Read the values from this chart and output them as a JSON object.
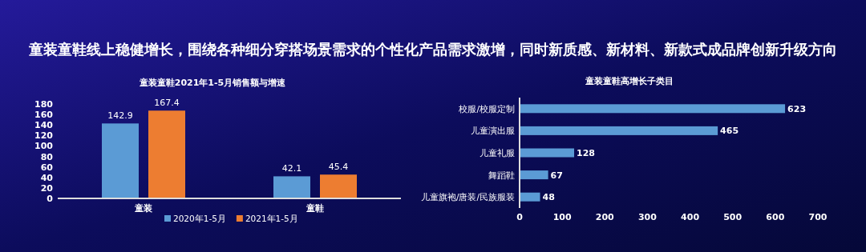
{
  "chart_data": [
    {
      "type": "other",
      "title": "童装童鞋线上稳健增长，围绕各种细分穿搭场景需求的个性化产品需求激增，同时新质感、新材料、新款式成品牌创新升级方向"
    },
    {
      "type": "bar",
      "title": "童装童鞋2021年1-5月销售额与增速",
      "categories": [
        "童装",
        "童鞋"
      ],
      "series": [
        {
          "name": "2020年1-5月",
          "color": "#5b9bd5",
          "values": [
            142.9,
            42.1
          ]
        },
        {
          "name": "2021年1-5月",
          "color": "#ed7d31",
          "values": [
            167.4,
            45.4
          ]
        }
      ],
      "ylim": [
        0,
        180
      ],
      "yticks": [
        0,
        20,
        40,
        60,
        80,
        100,
        120,
        140,
        160,
        180
      ],
      "data_labels": true,
      "legend": "bottom",
      "grid": false
    },
    {
      "type": "bar",
      "orientation": "horizontal",
      "title": "童装童鞋高增长子类目",
      "categories": [
        "校服/校服定制",
        "儿童演出服",
        "儿童礼服",
        "舞蹈鞋",
        "儿童旗袍/唐装/民族服装"
      ],
      "values": [
        623,
        465,
        128,
        67,
        48
      ],
      "color": "#5b9bd5",
      "xlim": [
        0,
        700
      ],
      "xticks": [
        0,
        100,
        200,
        300,
        400,
        500,
        600,
        700
      ],
      "data_labels": true,
      "grid": false
    }
  ]
}
